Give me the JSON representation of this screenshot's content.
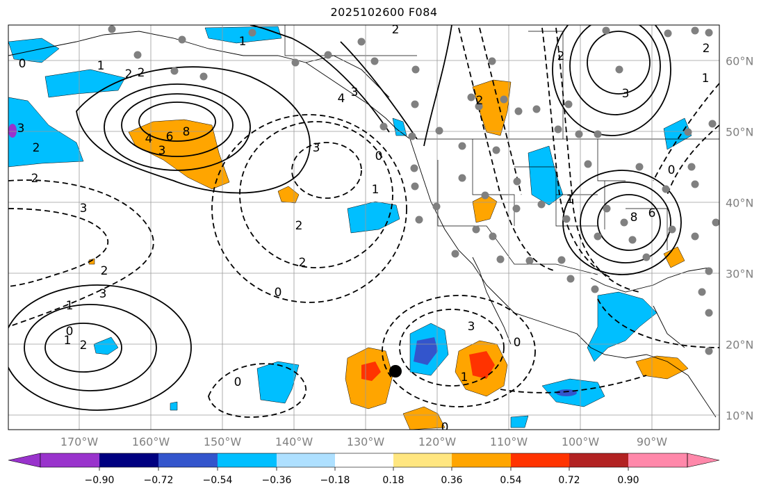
{
  "title": "2025102600 F084",
  "longitude_labels": [
    "170°W",
    "160°W",
    "150°W",
    "140°W",
    "130°W",
    "120°W",
    "110°W",
    "100°W",
    "90°W"
  ],
  "latitude_labels": [
    "60°N",
    "50°N",
    "40°N",
    "30°N",
    "20°N",
    "10°N"
  ],
  "colorbar": {
    "ticks": [
      "−0.90",
      "−0.72",
      "−0.54",
      "−0.36",
      "−0.18",
      "0.18",
      "0.36",
      "0.54",
      "0.72",
      "0.90"
    ],
    "colors": [
      "#9933cc",
      "#000080",
      "#3355cc",
      "#00bfff",
      "#aee0ff",
      "#ffffff",
      "#ffe680",
      "#ffa500",
      "#ff3300",
      "#b22222",
      "#ff88aa"
    ]
  },
  "contour_labels": [
    "2",
    "1",
    "2",
    "2",
    "0",
    "1",
    "3",
    "2",
    "3",
    "3",
    "2",
    "8",
    "6",
    "4",
    "3",
    "2",
    "0",
    "2",
    "0",
    "1",
    "4",
    "3",
    "2",
    "1",
    "1",
    "0",
    "2",
    "3",
    "0",
    "1",
    "3",
    "0",
    "2",
    "2",
    "3",
    "8",
    "6",
    "0",
    "2",
    "1",
    "1",
    "0"
  ],
  "colors": {
    "shade_blue": "#00bfff",
    "shade_mid_blue": "#3355cc",
    "shade_orange": "#ffa500",
    "shade_red": "#ff3300",
    "station_dot": "#808080"
  }
}
